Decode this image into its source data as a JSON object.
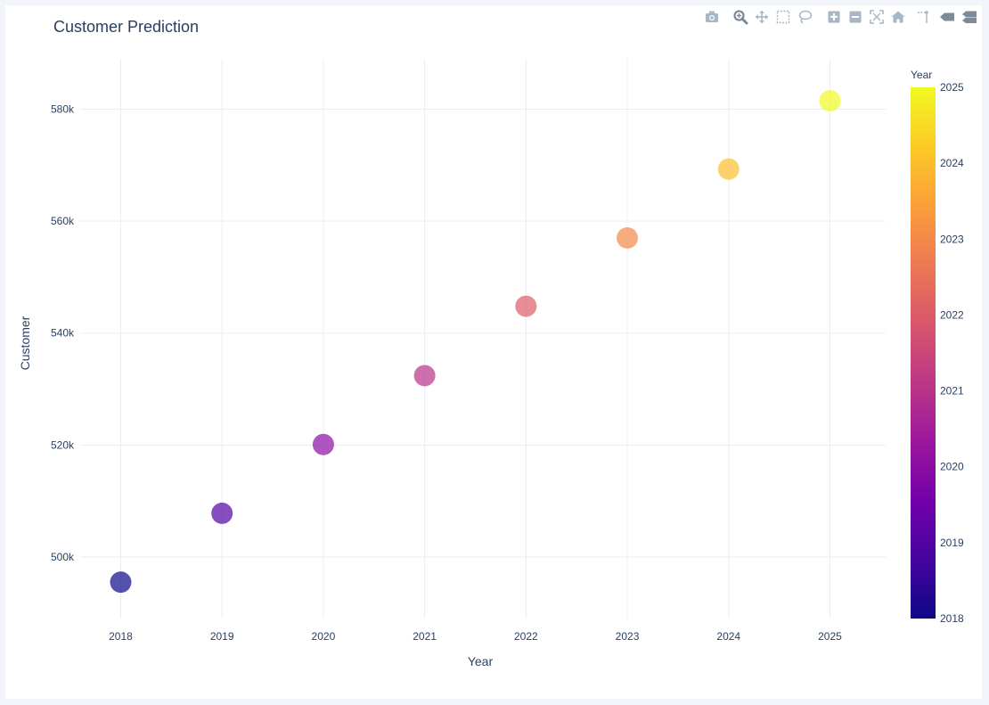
{
  "chart_data": {
    "type": "scatter",
    "title": "Customer Prediction",
    "xlabel": "Year",
    "ylabel": "Customer",
    "x": [
      2018,
      2019,
      2020,
      2021,
      2022,
      2023,
      2024,
      2025
    ],
    "y": [
      495500,
      507800,
      520100,
      532400,
      544800,
      557000,
      569300,
      581500
    ],
    "xlim": [
      2017.6,
      2025.55
    ],
    "ylim": [
      489000,
      589000
    ],
    "x_ticks": [
      "2018",
      "2019",
      "2020",
      "2021",
      "2022",
      "2023",
      "2024",
      "2025"
    ],
    "y_tick_values": [
      500000,
      520000,
      540000,
      560000,
      580000
    ],
    "y_ticks": [
      "500k",
      "520k",
      "540k",
      "560k",
      "580k"
    ],
    "grid": true,
    "colorbar": {
      "title": "Year",
      "range": [
        2018,
        2025
      ],
      "tick_values": [
        2018,
        2019,
        2020,
        2021,
        2022,
        2023,
        2024,
        2025
      ],
      "ticks": [
        "2018",
        "2019",
        "2020",
        "2021",
        "2022",
        "2023",
        "2024",
        "2025"
      ],
      "colorscale": [
        "#0d0887",
        "#46039f",
        "#7201a8",
        "#9c179e",
        "#bd3786",
        "#d8576b",
        "#ed7953",
        "#fb9f3a",
        "#fdca26",
        "#f0f921"
      ]
    },
    "marker_opacity": 0.7,
    "marker_size": 24
  },
  "modebar": {
    "icons": [
      "camera-icon",
      "zoom-icon",
      "pan-icon",
      "box-select-icon",
      "lasso-select-icon",
      "zoom-in-icon",
      "zoom-out-icon",
      "autoscale-icon",
      "reset-axes-icon",
      "spike-lines-icon",
      "hover-closest-icon",
      "hover-compare-icon"
    ],
    "color": "#a9b6c5",
    "active_color": "#7c8a9a"
  }
}
